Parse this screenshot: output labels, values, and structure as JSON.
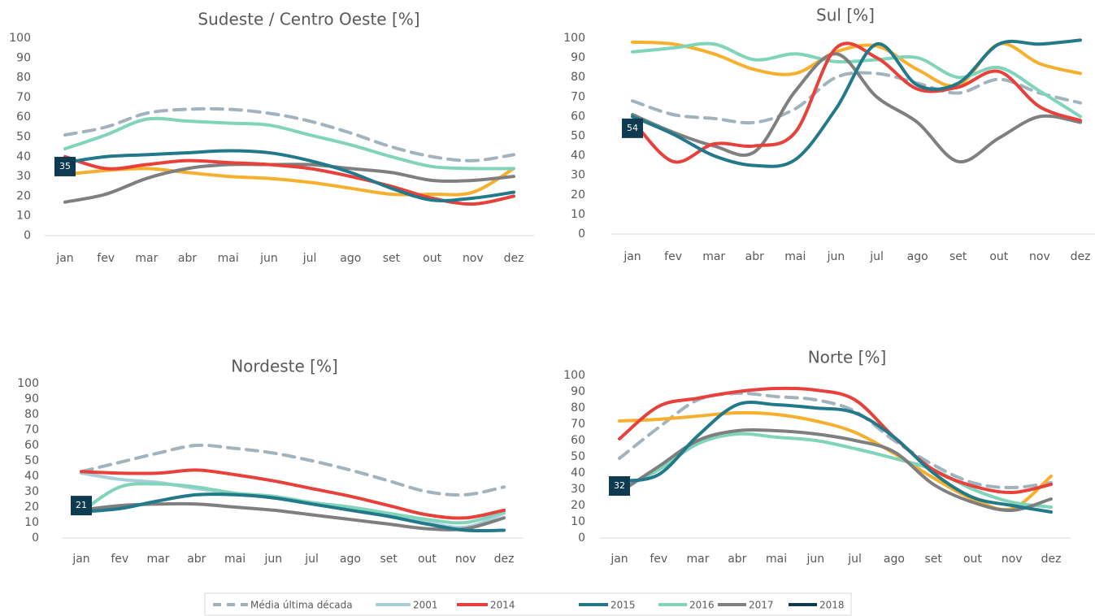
{
  "legend": [
    {
      "name": "Média última década",
      "color": "#a3b3be",
      "dashed": true
    },
    {
      "name": "2001",
      "color": "#a8d0da"
    },
    {
      "name": "2014",
      "color": "#e8403a"
    },
    {
      "name": "2015",
      "color": "#21798a"
    },
    {
      "name": "2016",
      "color": "#7fd4b9"
    },
    {
      "name": "2017",
      "color": "#7f7f7f"
    },
    {
      "name": "2018",
      "color": "#0e3a52"
    }
  ],
  "chart_data": [
    {
      "type": "line",
      "title": "Sudeste / Centro Oeste [%]",
      "categories": [
        "jan",
        "fev",
        "mar",
        "abr",
        "mai",
        "jun",
        "jul",
        "ago",
        "set",
        "out",
        "nov",
        "dez"
      ],
      "ylim": [
        0,
        100
      ],
      "yticks": [
        0,
        10,
        20,
        30,
        40,
        50,
        60,
        70,
        80,
        90,
        100
      ],
      "series": [
        {
          "color": "#a3b3be",
          "dashed": true,
          "values": [
            51,
            55,
            62,
            64,
            64,
            62,
            58,
            52,
            45,
            40,
            38,
            41
          ]
        },
        {
          "color": "#f6b02e",
          "values": [
            31,
            33,
            34,
            32,
            30,
            29,
            27,
            24,
            21,
            21,
            22,
            34
          ]
        },
        {
          "color": "#7fd4b9",
          "values": [
            44,
            51,
            59,
            58,
            57,
            56,
            51,
            46,
            40,
            35,
            34,
            34
          ]
        },
        {
          "color": "#7f7f7f",
          "values": [
            17,
            21,
            29,
            34,
            36,
            36,
            36,
            34,
            32,
            28,
            28,
            30
          ]
        },
        {
          "color": "#e8403a",
          "values": [
            40,
            34,
            36,
            38,
            37,
            36,
            34,
            30,
            25,
            19,
            16,
            20
          ]
        },
        {
          "color": "#21798a",
          "values": [
            37,
            40,
            41,
            42,
            43,
            42,
            38,
            32,
            24,
            18,
            19,
            22
          ]
        },
        {
          "color": "#0e3a52",
          "marker": "label",
          "values": [
            35,
            null,
            null,
            null,
            null,
            null,
            null,
            null,
            null,
            null,
            null,
            null
          ]
        }
      ]
    },
    {
      "type": "line",
      "title": "Sul [%]",
      "categories": [
        "jan",
        "fev",
        "mar",
        "abr",
        "mai",
        "jun",
        "jul",
        "ago",
        "set",
        "out",
        "nov",
        "dez"
      ],
      "ylim": [
        0,
        100
      ],
      "yticks": [
        0,
        10,
        20,
        30,
        40,
        50,
        60,
        70,
        80,
        90,
        100
      ],
      "series": [
        {
          "color": "#a3b3be",
          "dashed": true,
          "values": [
            68,
            61,
            59,
            57,
            64,
            80,
            82,
            77,
            72,
            79,
            72,
            67
          ]
        },
        {
          "color": "#f6b02e",
          "values": [
            98,
            97,
            92,
            84,
            82,
            93,
            96,
            84,
            76,
            97,
            87,
            82
          ]
        },
        {
          "color": "#7fd4b9",
          "values": [
            93,
            95,
            97,
            89,
            92,
            88,
            89,
            90,
            80,
            85,
            73,
            60
          ]
        },
        {
          "color": "#7f7f7f",
          "values": [
            61,
            52,
            45,
            42,
            73,
            92,
            70,
            57,
            37,
            49,
            60,
            57
          ]
        },
        {
          "color": "#e8403a",
          "values": [
            58,
            37,
            46,
            45,
            52,
            95,
            90,
            74,
            75,
            83,
            65,
            58
          ]
        },
        {
          "color": "#21798a",
          "values": [
            60,
            51,
            40,
            35,
            38,
            64,
            97,
            76,
            77,
            97,
            97,
            99
          ]
        },
        {
          "color": "#0e3a52",
          "marker": "label",
          "values": [
            54,
            null,
            null,
            null,
            null,
            null,
            null,
            null,
            null,
            null,
            null,
            null
          ]
        }
      ]
    },
    {
      "type": "line",
      "title": "Nordeste [%]",
      "categories": [
        "jan",
        "fev",
        "mar",
        "abr",
        "mai",
        "jun",
        "jul",
        "ago",
        "set",
        "out",
        "nov",
        "dez"
      ],
      "ylim": [
        0,
        100
      ],
      "yticks": [
        0,
        10,
        20,
        30,
        40,
        50,
        60,
        70,
        80,
        90,
        100
      ],
      "series": [
        {
          "color": "#a3b3be",
          "dashed": true,
          "values": [
            43,
            49,
            55,
            60,
            58,
            55,
            50,
            44,
            37,
            30,
            28,
            33
          ]
        },
        {
          "color": "#a8d0da",
          "values": [
            42,
            38,
            36,
            32,
            29,
            26,
            22,
            18,
            14,
            10,
            7,
            16
          ]
        },
        {
          "color": "#7fd4b9",
          "values": [
            17,
            33,
            35,
            33,
            29,
            27,
            23,
            20,
            16,
            12,
            10,
            17
          ]
        },
        {
          "color": "#7f7f7f",
          "values": [
            18,
            21,
            22,
            22,
            20,
            18,
            15,
            12,
            9,
            6,
            6,
            13
          ]
        },
        {
          "color": "#e8403a",
          "values": [
            43,
            42,
            42,
            44,
            41,
            37,
            32,
            27,
            21,
            15,
            13,
            18
          ]
        },
        {
          "color": "#21798a",
          "values": [
            17,
            19,
            24,
            28,
            28,
            26,
            22,
            18,
            14,
            9,
            5,
            5
          ]
        },
        {
          "color": "#0e3a52",
          "marker": "label",
          "values": [
            21,
            null,
            null,
            null,
            null,
            null,
            null,
            null,
            null,
            null,
            null,
            null
          ]
        }
      ]
    },
    {
      "type": "line",
      "title": "Norte [%]",
      "categories": [
        "jan",
        "fev",
        "mar",
        "abr",
        "mai",
        "jun",
        "jul",
        "ago",
        "set",
        "out",
        "nov",
        "dez"
      ],
      "ylim": [
        0,
        100
      ],
      "yticks": [
        0,
        10,
        20,
        30,
        40,
        50,
        60,
        70,
        80,
        90,
        100
      ],
      "series": [
        {
          "color": "#a3b3be",
          "dashed": true,
          "values": [
            49,
            68,
            85,
            89,
            87,
            85,
            78,
            60,
            45,
            34,
            31,
            34
          ]
        },
        {
          "color": "#f6b02e",
          "values": [
            72,
            73,
            75,
            77,
            76,
            72,
            65,
            52,
            37,
            24,
            18,
            38
          ]
        },
        {
          "color": "#7fd4b9",
          "values": [
            30,
            42,
            58,
            64,
            62,
            60,
            55,
            49,
            42,
            30,
            22,
            19
          ]
        },
        {
          "color": "#7f7f7f",
          "values": [
            28,
            44,
            60,
            66,
            66,
            64,
            60,
            53,
            33,
            22,
            17,
            24
          ]
        },
        {
          "color": "#e8403a",
          "values": [
            61,
            81,
            86,
            90,
            92,
            91,
            85,
            62,
            42,
            32,
            28,
            33
          ]
        },
        {
          "color": "#21798a",
          "values": [
            35,
            39,
            63,
            82,
            82,
            80,
            77,
            62,
            40,
            25,
            20,
            16
          ]
        },
        {
          "color": "#0e3a52",
          "marker": "label",
          "values": [
            32,
            null,
            null,
            null,
            null,
            null,
            null,
            null,
            null,
            null,
            null,
            null
          ]
        }
      ]
    }
  ]
}
